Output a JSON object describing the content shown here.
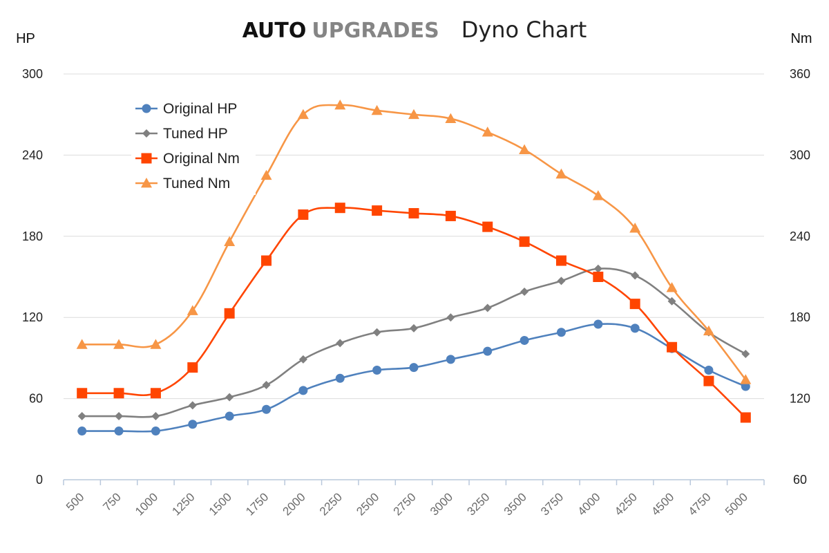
{
  "title": {
    "brand_part1": "AUTO",
    "brand_part2": "UPGRADES",
    "subtitle": "Dyno Chart"
  },
  "chart_data": {
    "type": "line",
    "x": [
      500,
      750,
      1000,
      1250,
      1500,
      1750,
      2000,
      2250,
      2500,
      2750,
      3000,
      3250,
      3500,
      3750,
      4000,
      4250,
      4500,
      4750,
      5000
    ],
    "x_tick_labels": [
      "500",
      "750",
      "1000",
      "1250",
      "1500",
      "1750",
      "2000",
      "2250",
      "2500",
      "2750",
      "3000",
      "3250",
      "3500",
      "3750",
      "4000",
      "4250",
      "4500",
      "4750",
      "5000"
    ],
    "y_left_unit": "HP",
    "y_right_unit": "Nm",
    "ylim_left": [
      0,
      300
    ],
    "ylim_right": [
      60,
      360
    ],
    "y_left_ticks": [
      "0",
      "60",
      "120",
      "180",
      "240",
      "300"
    ],
    "y_right_ticks": [
      "60",
      "120",
      "180",
      "240",
      "300",
      "360"
    ],
    "grid": "horizontal",
    "legend_position": "top-left",
    "series": [
      {
        "name": "Original HP",
        "axis": "left",
        "color": "#4f81bd",
        "marker": "circle",
        "values": [
          36,
          36,
          36,
          41,
          47,
          52,
          66,
          75,
          81,
          83,
          89,
          95,
          103,
          109,
          115,
          112,
          97,
          81,
          69
        ]
      },
      {
        "name": "Tuned HP",
        "axis": "left",
        "color": "#808080",
        "marker": "diamond",
        "values": [
          47,
          47,
          47,
          55,
          61,
          70,
          89,
          101,
          109,
          112,
          120,
          127,
          139,
          147,
          156,
          151,
          132,
          109,
          93
        ]
      },
      {
        "name": "Original Nm",
        "axis": "right",
        "color": "#ff4500",
        "marker": "square",
        "values": [
          124,
          124,
          124,
          143,
          183,
          222,
          256,
          261,
          259,
          257,
          255,
          247,
          236,
          222,
          210,
          190,
          158,
          133,
          106
        ]
      },
      {
        "name": "Tuned Nm",
        "axis": "right",
        "color": "#f79646",
        "marker": "triangle",
        "values": [
          160,
          160,
          160,
          185,
          236,
          285,
          330,
          337,
          333,
          330,
          327,
          317,
          304,
          286,
          270,
          246,
          202,
          170,
          134
        ]
      }
    ]
  }
}
